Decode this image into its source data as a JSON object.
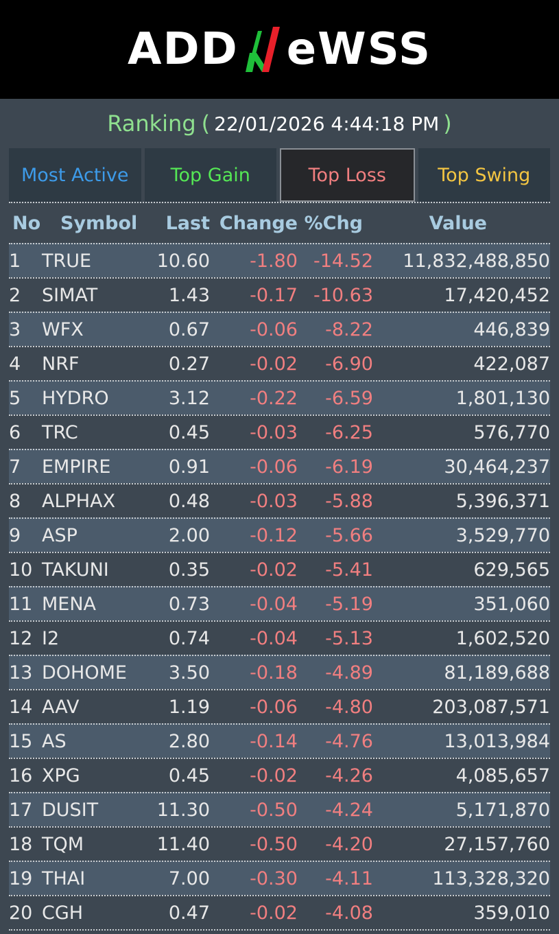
{
  "logo": {
    "left": "ADD",
    "right": "eWSS"
  },
  "ranking": {
    "label": "Ranking",
    "open_paren": "(",
    "timestamp": "22/01/2026 4:44:18 PM",
    "close_paren": ")"
  },
  "tabs": [
    {
      "label": "Most Active",
      "color": "#3d9be9"
    },
    {
      "label": "Top Gain",
      "color": "#55e755"
    },
    {
      "label": "Top Loss",
      "color": "#f17f80",
      "active": true
    },
    {
      "label": "Top Swing",
      "color": "#f3c542"
    }
  ],
  "columns": [
    "No",
    "Symbol",
    "Last",
    "Change",
    "%Chg",
    "Value"
  ],
  "rows": [
    {
      "no": "1",
      "symbol": "TRUE",
      "last": "10.60",
      "change": "-1.80",
      "pct": "-14.52",
      "value": "11,832,488,850"
    },
    {
      "no": "2",
      "symbol": "SIMAT",
      "last": "1.43",
      "change": "-0.17",
      "pct": "-10.63",
      "value": "17,420,452"
    },
    {
      "no": "3",
      "symbol": "WFX",
      "last": "0.67",
      "change": "-0.06",
      "pct": "-8.22",
      "value": "446,839"
    },
    {
      "no": "4",
      "symbol": "NRF",
      "last": "0.27",
      "change": "-0.02",
      "pct": "-6.90",
      "value": "422,087"
    },
    {
      "no": "5",
      "symbol": "HYDRO",
      "last": "3.12",
      "change": "-0.22",
      "pct": "-6.59",
      "value": "1,801,130"
    },
    {
      "no": "6",
      "symbol": "TRC",
      "last": "0.45",
      "change": "-0.03",
      "pct": "-6.25",
      "value": "576,770"
    },
    {
      "no": "7",
      "symbol": "EMPIRE",
      "last": "0.91",
      "change": "-0.06",
      "pct": "-6.19",
      "value": "30,464,237"
    },
    {
      "no": "8",
      "symbol": "ALPHAX",
      "last": "0.48",
      "change": "-0.03",
      "pct": "-5.88",
      "value": "5,396,371"
    },
    {
      "no": "9",
      "symbol": "ASP",
      "last": "2.00",
      "change": "-0.12",
      "pct": "-5.66",
      "value": "3,529,770"
    },
    {
      "no": "10",
      "symbol": "TAKUNI",
      "last": "0.35",
      "change": "-0.02",
      "pct": "-5.41",
      "value": "629,565"
    },
    {
      "no": "11",
      "symbol": "MENA",
      "last": "0.73",
      "change": "-0.04",
      "pct": "-5.19",
      "value": "351,060"
    },
    {
      "no": "12",
      "symbol": "I2",
      "last": "0.74",
      "change": "-0.04",
      "pct": "-5.13",
      "value": "1,602,520"
    },
    {
      "no": "13",
      "symbol": "DOHOME",
      "last": "3.50",
      "change": "-0.18",
      "pct": "-4.89",
      "value": "81,189,688"
    },
    {
      "no": "14",
      "symbol": "AAV",
      "last": "1.19",
      "change": "-0.06",
      "pct": "-4.80",
      "value": "203,087,571"
    },
    {
      "no": "15",
      "symbol": "AS",
      "last": "2.80",
      "change": "-0.14",
      "pct": "-4.76",
      "value": "13,013,984"
    },
    {
      "no": "16",
      "symbol": "XPG",
      "last": "0.45",
      "change": "-0.02",
      "pct": "-4.26",
      "value": "4,085,657"
    },
    {
      "no": "17",
      "symbol": "DUSIT",
      "last": "11.30",
      "change": "-0.50",
      "pct": "-4.24",
      "value": "5,171,870"
    },
    {
      "no": "18",
      "symbol": "TQM",
      "last": "11.40",
      "change": "-0.50",
      "pct": "-4.20",
      "value": "27,157,760"
    },
    {
      "no": "19",
      "symbol": "THAI",
      "last": "7.00",
      "change": "-0.30",
      "pct": "-4.11",
      "value": "113,328,320"
    },
    {
      "no": "20",
      "symbol": "CGH",
      "last": "0.47",
      "change": "-0.02",
      "pct": "-4.08",
      "value": "359,010"
    }
  ]
}
